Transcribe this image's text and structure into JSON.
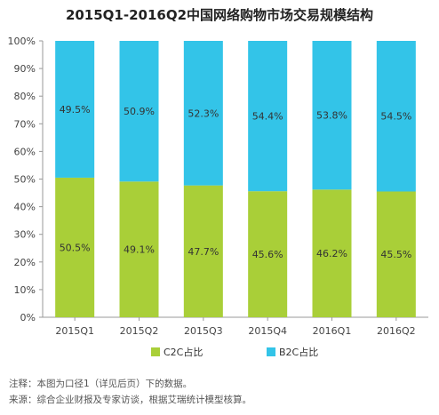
{
  "chart_data": {
    "type": "bar",
    "stacked": true,
    "title": "2015Q1-2016Q2中国网络购物市场交易规模结构",
    "categories": [
      "2015Q1",
      "2015Q2",
      "2015Q3",
      "2015Q4",
      "2016Q1",
      "2016Q2"
    ],
    "series": [
      {
        "name": "C2C占比",
        "color": "#a9cf38",
        "values": [
          50.5,
          49.1,
          47.7,
          45.6,
          46.2,
          45.5
        ],
        "labels": [
          "50.5%",
          "49.1%",
          "47.7%",
          "45.6%",
          "46.2%",
          "45.5%"
        ]
      },
      {
        "name": "B2C占比",
        "color": "#33c4e8",
        "values": [
          49.5,
          50.9,
          52.3,
          54.4,
          53.8,
          54.5
        ],
        "labels": [
          "49.5%",
          "50.9%",
          "52.3%",
          "54.4%",
          "53.8%",
          "54.5%"
        ]
      }
    ],
    "y_ticks": [
      "0%",
      "10%",
      "20%",
      "30%",
      "40%",
      "50%",
      "60%",
      "70%",
      "80%",
      "90%",
      "100%"
    ],
    "ylim": [
      0,
      100
    ],
    "grid": false,
    "legend_position": "bottom"
  },
  "notes": {
    "line1": "注释：本图为口径1（详见后页）下的数据。",
    "line2": "来源：综合企业财报及专家访谈，根据艾瑞统计模型核算。"
  }
}
